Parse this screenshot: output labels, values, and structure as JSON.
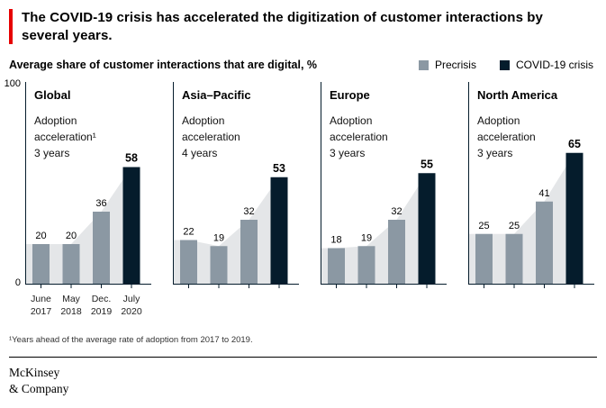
{
  "colors": {
    "accent": "#e60000",
    "precrisis": "#8b98a3",
    "covid": "#051c2c",
    "area": "#e4e6e8",
    "axis": "#051c2c"
  },
  "header": {
    "title": "The COVID-19 crisis has accelerated the digitization of customer interactions by several years."
  },
  "subtitle": "Average share of customer interactions that are digital, %",
  "legend": [
    {
      "label": "Precrisis",
      "color_key": "precrisis"
    },
    {
      "label": "COVID-19 crisis",
      "color_key": "covid"
    }
  ],
  "y_axis": {
    "max": "100",
    "min": "0"
  },
  "footnote": "¹Years ahead of the average rate of adoption from 2017 to 2019.",
  "logo": {
    "line1": "McKinsey",
    "line2": "& Company"
  },
  "chart_data": {
    "type": "bar",
    "title": "Average share of customer interactions that are digital, %",
    "categories": [
      "June 2017",
      "May 2018",
      "Dec. 2019",
      "July 2020"
    ],
    "ylim": [
      0,
      100
    ],
    "grid": false,
    "legend": [
      "Precrisis",
      "COVID-19 crisis"
    ],
    "legend_position": "top-right",
    "series": [
      {
        "name": "Global",
        "accel_lines": [
          "Adoption",
          "acceleration¹",
          "3 years"
        ],
        "values": [
          20,
          20,
          36,
          58
        ]
      },
      {
        "name": "Asia–Pacific",
        "accel_lines": [
          "Adoption",
          "acceleration",
          "4 years"
        ],
        "values": [
          22,
          19,
          32,
          53
        ]
      },
      {
        "name": "Europe",
        "accel_lines": [
          "Adoption",
          "acceleration",
          "3 years"
        ],
        "values": [
          18,
          19,
          32,
          55
        ]
      },
      {
        "name": "North America",
        "accel_lines": [
          "Adoption",
          "acceleration",
          "3 years"
        ],
        "values": [
          25,
          25,
          41,
          65
        ]
      }
    ]
  }
}
